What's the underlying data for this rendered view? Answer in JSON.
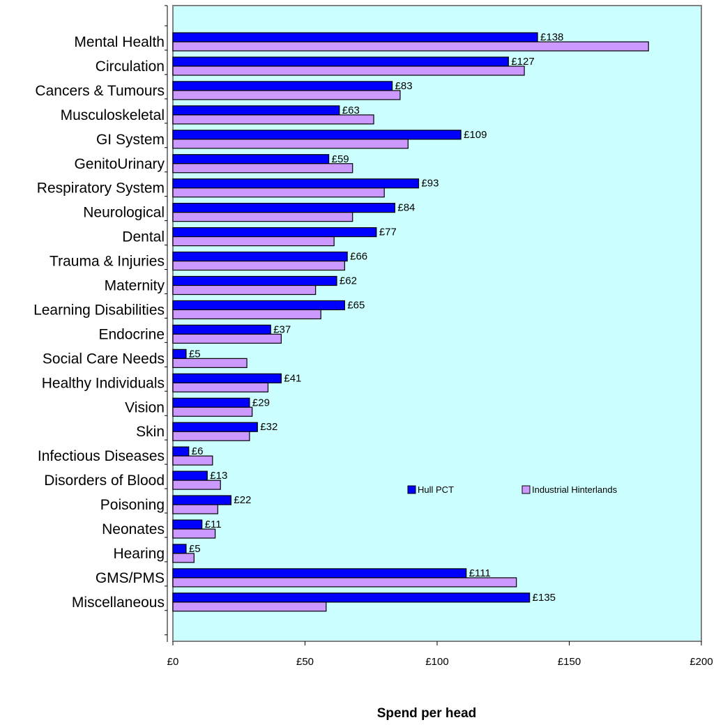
{
  "chart_data": {
    "type": "bar",
    "orientation": "horizontal",
    "categories": [
      "Mental Health",
      "Circulation",
      "Cancers & Tumours",
      "Musculoskeletal",
      "GI System",
      "GenitoUrinary",
      "Respiratory System",
      "Neurological",
      "Dental",
      "Trauma & Injuries",
      "Maternity",
      "Learning Disabilities",
      "Endocrine",
      "Social Care Needs",
      "Healthy Individuals",
      "Vision",
      "Skin",
      "Infectious Diseases",
      "Disorders of Blood",
      "Poisoning",
      "Neonates",
      "Hearing",
      "GMS/PMS",
      "Miscellaneous"
    ],
    "series": [
      {
        "name": "Hull PCT",
        "color": "#0000ff",
        "values": [
          138,
          127,
          83,
          63,
          109,
          59,
          93,
          84,
          77,
          66,
          62,
          65,
          37,
          5,
          41,
          29,
          32,
          6,
          13,
          22,
          11,
          5,
          111,
          135
        ],
        "value_labels": [
          "£138",
          "£127",
          "£83",
          "£63",
          "£109",
          "£59",
          "£93",
          "£84",
          "£77",
          "£66",
          "£62",
          "£65",
          "£37",
          "£5",
          "£41",
          "£29",
          "£32",
          "£6",
          "£13",
          "£22",
          "£11",
          "£5",
          "£111",
          "£135"
        ]
      },
      {
        "name": "Industrial Hinterlands",
        "color": "#cc99ff",
        "values": [
          180,
          133,
          86,
          76,
          89,
          68,
          80,
          68,
          61,
          65,
          54,
          56,
          41,
          28,
          36,
          30,
          29,
          15,
          18,
          17,
          16,
          8,
          130,
          58
        ]
      }
    ],
    "xlim": [
      0,
      200
    ],
    "x_ticks": [
      0,
      50,
      100,
      150,
      200
    ],
    "x_tick_labels": [
      "£0",
      "£50",
      "£100",
      "£150",
      "£200"
    ],
    "xlabel": "Spend per head",
    "ylabel": "",
    "title": "",
    "plot_background": "#ccffff",
    "grid": false,
    "legend": {
      "position": "inside-right",
      "entries": [
        "Hull PCT",
        "Industrial Hinterlands"
      ]
    }
  }
}
